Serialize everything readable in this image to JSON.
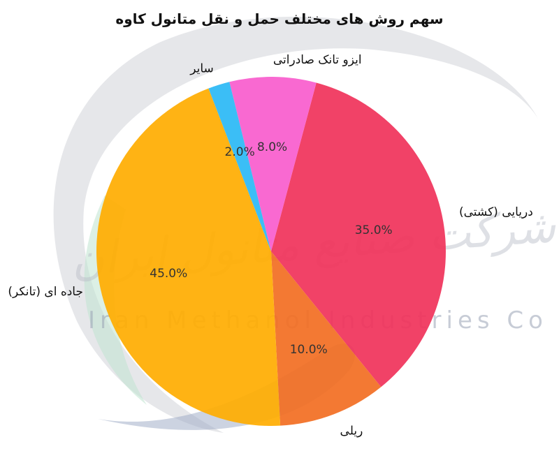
{
  "chart_data": {
    "type": "pie",
    "title": "سهم روش های مختلف حمل و نقل متانول کاوه",
    "slices": [
      {
        "label": "دریایی (کشتی)",
        "value": 35.0,
        "pct_text": "35.0%",
        "color": "#f0325a"
      },
      {
        "label": "ریلی",
        "value": 10.0,
        "pct_text": "10.0%",
        "color": "#f26e22"
      },
      {
        "label": "جاده ای (تانکر)",
        "value": 45.0,
        "pct_text": "45.0%",
        "color": "#ffad00"
      },
      {
        "label": "سایر",
        "value": 2.0,
        "pct_text": "2.0%",
        "color": "#2ab8f5"
      },
      {
        "label": "ایزو تانک صادراتی",
        "value": 8.0,
        "pct_text": "8.0%",
        "color": "#f95ccd"
      }
    ],
    "start_angle_deg": 75,
    "direction": "clockwise"
  },
  "watermark": {
    "company_latin": "Iran Methanol Industries Co",
    "company_persian": "شرکت صنایع متانول ایران"
  }
}
